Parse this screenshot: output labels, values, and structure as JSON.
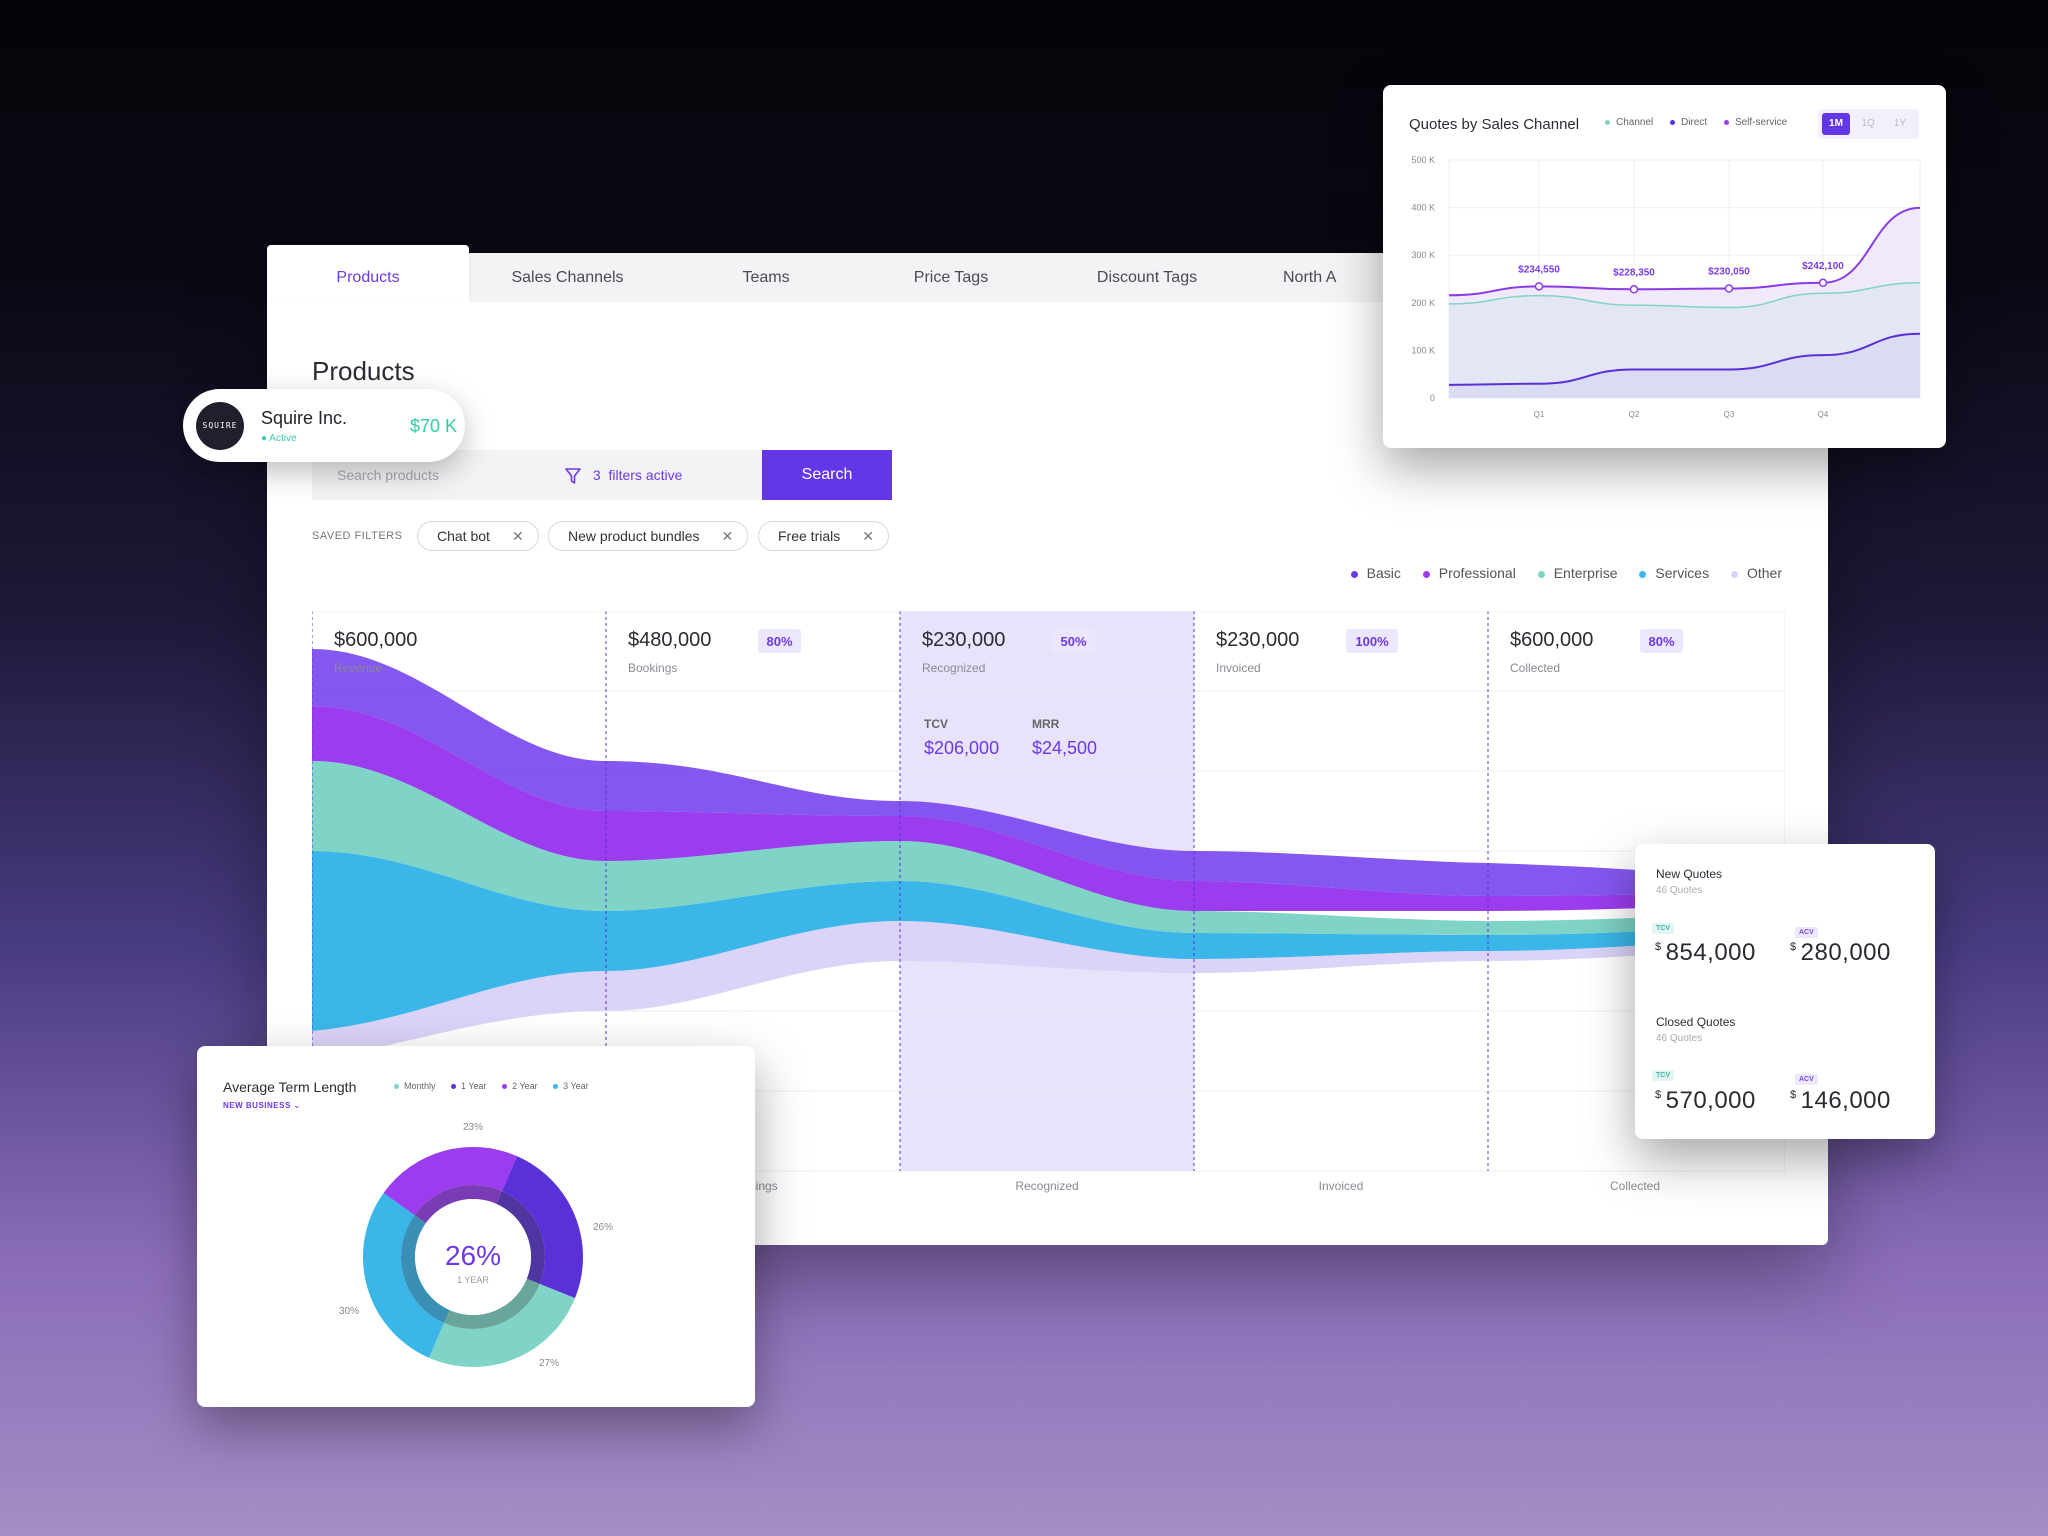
{
  "tabs": [
    "Products",
    "Sales Channels",
    "Teams",
    "Price Tags",
    "Discount Tags",
    "North A"
  ],
  "page_title": "Products",
  "search": {
    "placeholder": "Search products",
    "filters_count": "3",
    "filters_text": "filters active",
    "button": "Search"
  },
  "saved_filters": {
    "label": "SAVED FILTERS",
    "chips": [
      "Chat bot",
      "New product bundles",
      "Free trials"
    ]
  },
  "legend": [
    {
      "label": "Basic",
      "color": "#6a3be6"
    },
    {
      "label": "Professional",
      "color": "#9b3cef"
    },
    {
      "label": "Enterprise",
      "color": "#7fd4c7"
    },
    {
      "label": "Services",
      "color": "#3ab7e8"
    },
    {
      "label": "Other",
      "color": "#d9d0f7"
    }
  ],
  "stages": [
    {
      "value": "$600,000",
      "label": "Revenue",
      "badge": "",
      "axis": ""
    },
    {
      "value": "$480,000",
      "label": "Bookings",
      "badge": "80%",
      "axis": "Bookings"
    },
    {
      "value": "$230,000",
      "label": "Recognized",
      "badge": "50%",
      "axis": "Recognized"
    },
    {
      "value": "$230,000",
      "label": "Invoiced",
      "badge": "100%",
      "axis": "Invoiced"
    },
    {
      "value": "$600,000",
      "label": "Collected",
      "badge": "80%",
      "axis": "Collected"
    }
  ],
  "recognized_detail": {
    "tcv_label": "TCV",
    "tcv_value": "$206,000",
    "mrr_label": "MRR",
    "mrr_value": "$24,500"
  },
  "account": {
    "logo_text": "SQUIRE",
    "name": "Squire Inc.",
    "status": "Active",
    "amount": "$70 K"
  },
  "quotes_channel": {
    "title": "Quotes by Sales Channel",
    "legend": [
      {
        "label": "Channel",
        "color": "#7fd4c7"
      },
      {
        "label": "Direct",
        "color": "#5a30d8"
      },
      {
        "label": "Self-service",
        "color": "#9b3cef"
      }
    ],
    "ranges": [
      "1M",
      "1Q",
      "1Y"
    ]
  },
  "chart_data": {
    "type": "line",
    "categories": [
      "Q1",
      "Q2",
      "Q3",
      "Q4"
    ],
    "yticks": [
      "500 K",
      "400 K",
      "300 K",
      "200 K",
      "100 K",
      "0"
    ],
    "ylim": [
      0,
      500000
    ],
    "series": [
      {
        "name": "Self-service",
        "values": [
          234550,
          228350,
          230050,
          242100
        ],
        "labels": [
          "$234,550",
          "$228,350",
          "$230,050",
          "$242,100"
        ]
      },
      {
        "name": "Channel",
        "values": [
          215000,
          195000,
          190000,
          220000
        ]
      },
      {
        "name": "Direct",
        "values": [
          30000,
          60000,
          60000,
          90000
        ]
      }
    ]
  },
  "quotes_kpi": {
    "new_title": "New Quotes",
    "new_sub": "46 Quotes",
    "new_tcv": "854,000",
    "new_acv": "280,000",
    "closed_title": "Closed Quotes",
    "closed_sub": "46 Quotes",
    "closed_tcv": "570,000",
    "closed_acv": "146,000",
    "tcv_badge": "TCV",
    "acv_badge": "ACV",
    "currency": "$"
  },
  "term_length": {
    "title": "Average Term Length",
    "filter": "NEW BUSINESS",
    "legend": [
      {
        "label": "Monthly",
        "color": "#7fd4c7"
      },
      {
        "label": "1 Year",
        "color": "#5a30d8"
      },
      {
        "label": "2 Year",
        "color": "#9b3cef"
      },
      {
        "label": "3 Year",
        "color": "#3ab7e8"
      }
    ],
    "center_value": "26%",
    "center_label": "1 YEAR",
    "slices": [
      {
        "name": "2 Year",
        "value": 23,
        "label": "23%"
      },
      {
        "name": "1 Year",
        "value": 26,
        "label": "26%"
      },
      {
        "name": "Monthly",
        "value": 27,
        "label": "27%"
      },
      {
        "name": "3 Year",
        "value": 30,
        "label": "30%"
      }
    ]
  }
}
